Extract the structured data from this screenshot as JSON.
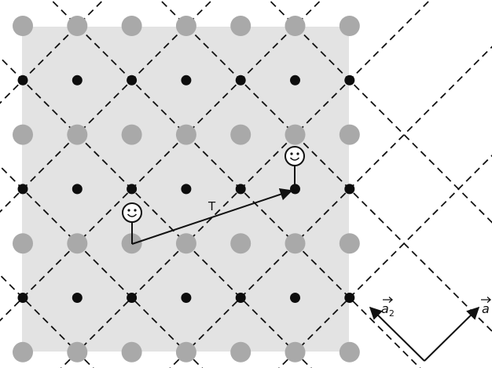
{
  "diagram": {
    "translation_label": "T",
    "vector_a2": {
      "symbol": "a",
      "subscript": "2"
    },
    "vector_a1": {
      "symbol": "a"
    },
    "colors": {
      "background_square": "#e3e3e3",
      "gray_site": "#a9a9a9",
      "black_site": "#0d0d0d",
      "line": "#111111",
      "face": "#ffffff"
    }
  }
}
